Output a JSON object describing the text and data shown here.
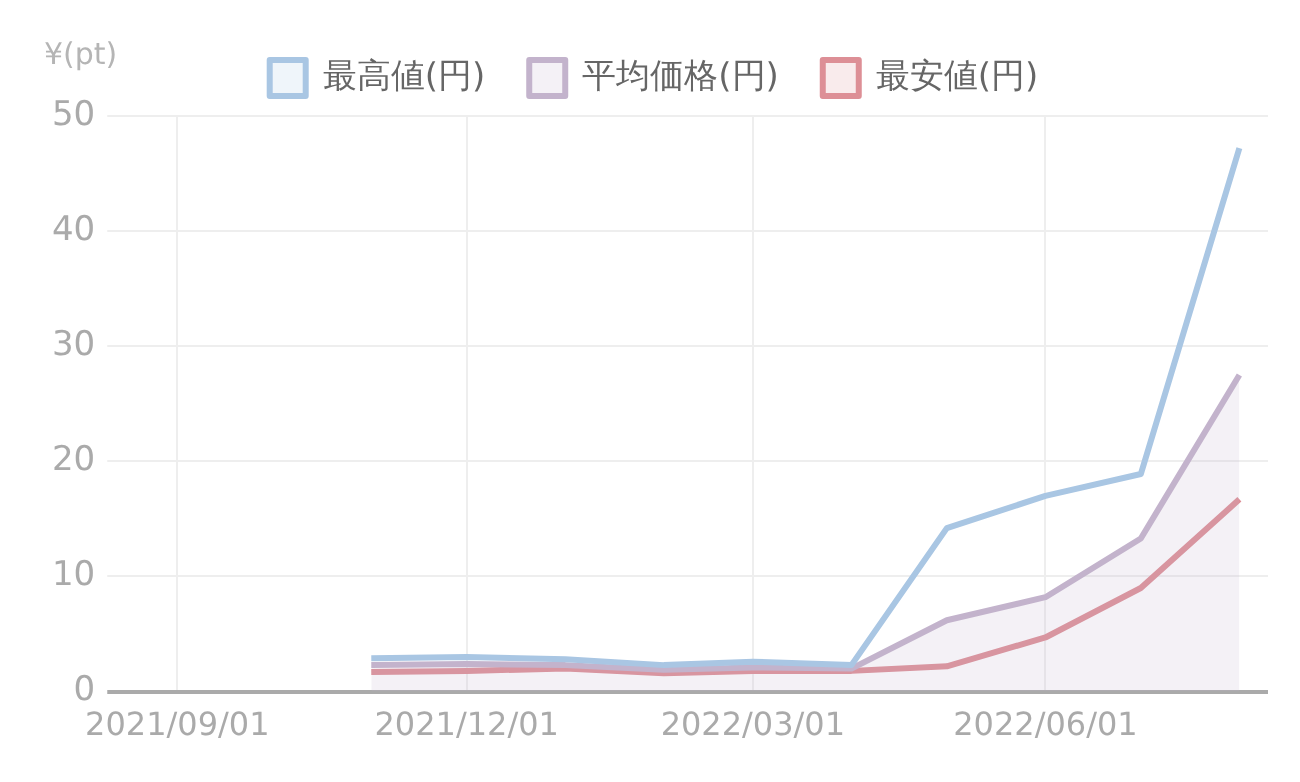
{
  "chart_data": {
    "type": "line",
    "ylabel": "¥(pt)",
    "x": [
      "2021-11-01",
      "2021-12-01",
      "2022-01-01",
      "2022-02-01",
      "2022-03-01",
      "2022-04-01",
      "2022-05-01",
      "2022-06-01",
      "2022-07-01",
      "2022-08-01"
    ],
    "series": [
      {
        "name": "最高値(円)",
        "color": "#a9c6e3",
        "values": [
          2.9,
          3.0,
          2.8,
          2.3,
          2.6,
          2.3,
          14.2,
          17.0,
          18.9,
          47.2
        ]
      },
      {
        "name": "平均価格(円)",
        "type": "area",
        "color": "#c3b3cc",
        "values": [
          2.3,
          2.4,
          2.3,
          1.9,
          2.1,
          2.0,
          6.2,
          8.2,
          13.3,
          27.5
        ]
      },
      {
        "name": "最安値(円)",
        "color": "#dd8f96",
        "values": [
          1.7,
          1.8,
          2.0,
          1.6,
          1.8,
          1.8,
          2.2,
          4.7,
          9.0,
          16.7
        ]
      }
    ],
    "xlim": [
      "2021-08-15",
      "2022-08-10"
    ],
    "xticks": [
      {
        "value": "2021-09-01",
        "label": "2021/09/01"
      },
      {
        "value": "2021-12-01",
        "label": "2021/12/01"
      },
      {
        "value": "2022-03-01",
        "label": "2022/03/01"
      },
      {
        "value": "2022-06-01",
        "label": "2022/06/01"
      }
    ],
    "ylim": [
      0,
      50
    ],
    "yticks": [
      0,
      10,
      20,
      30,
      40,
      50
    ],
    "grid": true,
    "legend": "top",
    "marker": "none",
    "line_style": "solid"
  }
}
